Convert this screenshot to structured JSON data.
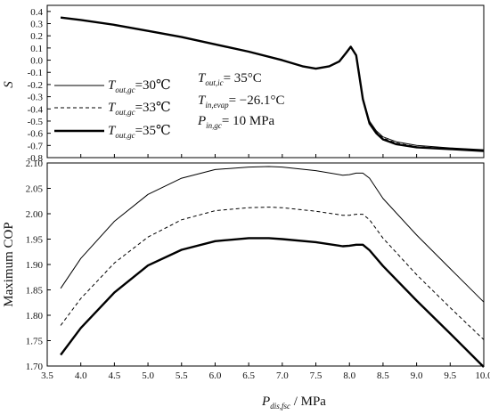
{
  "chart_data": [
    {
      "type": "line",
      "ylabel": "S",
      "xlim": [
        3.5,
        10.0
      ],
      "ylim": [
        -0.8,
        0.45
      ],
      "yticks": [
        "0.4",
        "0.3",
        "0.2",
        "0.1",
        "0.0",
        "-0.1",
        "-0.2",
        "-0.3",
        "-0.4",
        "-0.5",
        "-0.6",
        "-0.7",
        "-0.8"
      ],
      "legend": {
        "items": [
          {
            "main": "T",
            "sub": "out,gc",
            "value": "=30℃",
            "style": "thin-solid"
          },
          {
            "main": "T",
            "sub": "out,gc",
            "value": "=33℃",
            "style": "dashed"
          },
          {
            "main": "T",
            "sub": "out,gc",
            "value": "=35℃",
            "style": "thick-solid"
          }
        ]
      },
      "annotations": [
        {
          "main": "T",
          "sub": "out,ic",
          "value": "= 35°C"
        },
        {
          "main": "T",
          "sub": "in,evap",
          "value": "= −26.1°C"
        },
        {
          "main": "P",
          "sub": "in,gc",
          "value": "= 10 MPa"
        }
      ],
      "series": [
        {
          "style": "thin-solid",
          "x": [
            3.7,
            4.0,
            4.5,
            5.0,
            5.5,
            6.0,
            6.5,
            7.0,
            7.3,
            7.5,
            7.7,
            7.85,
            7.95,
            8.02,
            8.1,
            8.2,
            8.3,
            8.4,
            8.5,
            8.7,
            9.0,
            9.5,
            10.0
          ],
          "y": [
            0.35,
            0.33,
            0.29,
            0.24,
            0.19,
            0.13,
            0.07,
            0.0,
            -0.05,
            -0.07,
            -0.05,
            -0.01,
            0.06,
            0.11,
            0.04,
            -0.32,
            -0.5,
            -0.58,
            -0.63,
            -0.67,
            -0.7,
            -0.72,
            -0.735
          ]
        },
        {
          "style": "dashed",
          "x": [
            3.7,
            4.0,
            4.5,
            5.0,
            5.5,
            6.0,
            6.5,
            7.0,
            7.3,
            7.5,
            7.7,
            7.85,
            7.95,
            8.02,
            8.1,
            8.2,
            8.3,
            8.4,
            8.5,
            8.7,
            9.0,
            9.5,
            10.0
          ],
          "y": [
            0.35,
            0.33,
            0.29,
            0.24,
            0.19,
            0.13,
            0.07,
            0.0,
            -0.05,
            -0.07,
            -0.05,
            -0.01,
            0.06,
            0.11,
            0.04,
            -0.32,
            -0.51,
            -0.59,
            -0.64,
            -0.68,
            -0.71,
            -0.725,
            -0.74
          ]
        },
        {
          "style": "thick-solid",
          "x": [
            3.7,
            4.0,
            4.5,
            5.0,
            5.5,
            6.0,
            6.5,
            7.0,
            7.3,
            7.5,
            7.7,
            7.85,
            7.95,
            8.02,
            8.1,
            8.2,
            8.3,
            8.4,
            8.5,
            8.7,
            9.0,
            9.5,
            10.0
          ],
          "y": [
            0.35,
            0.33,
            0.29,
            0.24,
            0.19,
            0.13,
            0.07,
            0.0,
            -0.05,
            -0.07,
            -0.05,
            -0.01,
            0.06,
            0.11,
            0.04,
            -0.32,
            -0.52,
            -0.6,
            -0.65,
            -0.69,
            -0.715,
            -0.73,
            -0.745
          ]
        }
      ]
    },
    {
      "type": "line",
      "xlabel": {
        "main": "P",
        "sub": "dis,fsc",
        "rest": " / MPa"
      },
      "ylabel": "Maximum COP",
      "xlim": [
        3.5,
        10.0
      ],
      "ylim": [
        1.7,
        2.1
      ],
      "xticks": [
        "3.5",
        "4.0",
        "4.5",
        "5.0",
        "5.5",
        "6.0",
        "6.5",
        "7.0",
        "7.5",
        "8.0",
        "8.5",
        "9.0",
        "9.5",
        "10.0"
      ],
      "yticks": [
        "2.10",
        "2.05",
        "2.00",
        "1.95",
        "1.90",
        "1.85",
        "1.80",
        "1.75",
        "1.70"
      ],
      "series": [
        {
          "style": "thin-solid",
          "x": [
            3.7,
            4.0,
            4.5,
            5.0,
            5.5,
            6.0,
            6.5,
            6.8,
            7.0,
            7.5,
            7.9,
            8.0,
            8.1,
            8.2,
            8.3,
            8.5,
            9.0,
            9.5,
            10.0
          ],
          "y": [
            1.853,
            1.912,
            1.985,
            2.038,
            2.07,
            2.087,
            2.092,
            2.093,
            2.092,
            2.085,
            2.076,
            2.077,
            2.08,
            2.08,
            2.07,
            2.03,
            1.958,
            1.892,
            1.826
          ]
        },
        {
          "style": "dashed",
          "x": [
            3.7,
            4.0,
            4.5,
            5.0,
            5.5,
            6.0,
            6.5,
            6.8,
            7.0,
            7.5,
            7.9,
            8.0,
            8.1,
            8.2,
            8.3,
            8.5,
            9.0,
            9.5,
            10.0
          ],
          "y": [
            1.78,
            1.833,
            1.903,
            1.954,
            1.988,
            2.006,
            2.012,
            2.013,
            2.012,
            2.005,
            1.997,
            1.997,
            1.999,
            1.999,
            1.988,
            1.952,
            1.88,
            1.815,
            1.752
          ]
        },
        {
          "style": "thick-solid",
          "x": [
            3.7,
            4.0,
            4.5,
            5.0,
            5.5,
            6.0,
            6.5,
            6.8,
            7.0,
            7.5,
            7.9,
            8.0,
            8.1,
            8.2,
            8.3,
            8.5,
            9.0,
            9.5,
            10.0
          ],
          "y": [
            1.722,
            1.775,
            1.845,
            1.898,
            1.929,
            1.946,
            1.952,
            1.952,
            1.95,
            1.944,
            1.936,
            1.937,
            1.939,
            1.939,
            1.928,
            1.897,
            1.829,
            1.764,
            1.698
          ]
        }
      ]
    }
  ]
}
